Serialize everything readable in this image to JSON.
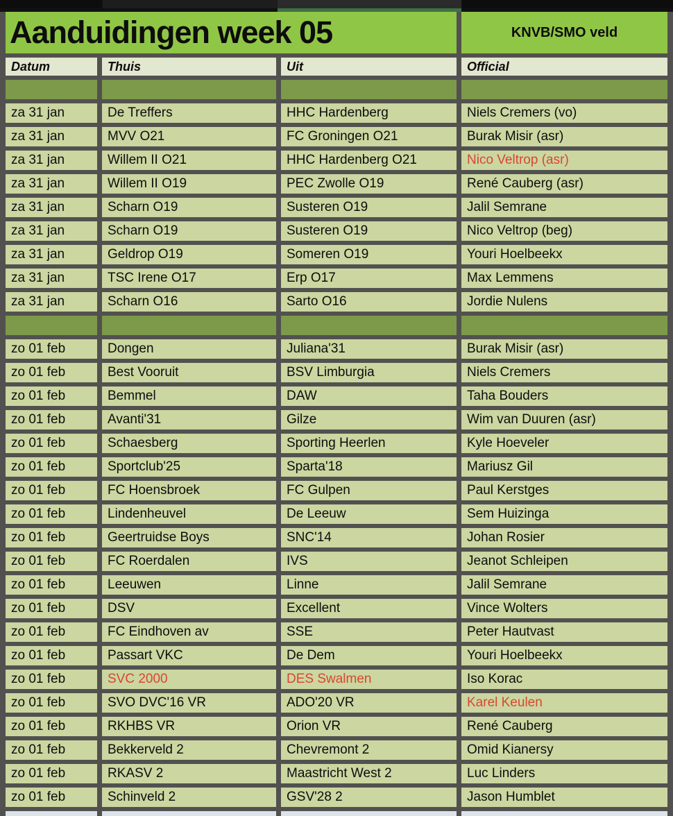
{
  "title": {
    "text": "Aanduidingen week 05",
    "subtitle": "KNVB/SMO veld"
  },
  "table": {
    "columns": [
      "Datum",
      "Thuis",
      "Uit",
      "Official"
    ],
    "sections": [
      {
        "rows": [
          {
            "datum": "za 31 jan",
            "thuis": "De Treffers",
            "uit": "HHC Hardenberg",
            "official": "Niels Cremers (vo)",
            "red": []
          },
          {
            "datum": "za 31 jan",
            "thuis": "MVV O21",
            "uit": "FC Groningen O21",
            "official": "Burak Misir (asr)",
            "red": []
          },
          {
            "datum": "za 31 jan",
            "thuis": "Willem II O21",
            "uit": "HHC Hardenberg O21",
            "official": "Nico Veltrop (asr)",
            "red": [
              "official"
            ]
          },
          {
            "datum": "za 31 jan",
            "thuis": "Willem II O19",
            "uit": "PEC Zwolle O19",
            "official": "René Cauberg (asr)",
            "red": []
          },
          {
            "datum": "za 31 jan",
            "thuis": "Scharn O19",
            "uit": "Susteren O19",
            "official": "Jalil Semrane",
            "red": []
          },
          {
            "datum": "za 31 jan",
            "thuis": "Scharn O19",
            "uit": "Susteren O19",
            "official": "Nico Veltrop (beg)",
            "red": []
          },
          {
            "datum": "za 31 jan",
            "thuis": "Geldrop O19",
            "uit": "Someren O19",
            "official": "Youri Hoelbeekx",
            "red": []
          },
          {
            "datum": "za 31 jan",
            "thuis": "TSC Irene O17",
            "uit": "Erp O17",
            "official": "Max Lemmens",
            "red": []
          },
          {
            "datum": "za 31 jan",
            "thuis": "Scharn O16",
            "uit": "Sarto O16",
            "official": "Jordie Nulens",
            "red": []
          }
        ]
      },
      {
        "rows": [
          {
            "datum": "zo 01 feb",
            "thuis": "Dongen",
            "uit": "Juliana'31",
            "official": "Burak Misir (asr)",
            "red": []
          },
          {
            "datum": "zo 01 feb",
            "thuis": "Best Vooruit",
            "uit": "BSV Limburgia",
            "official": "Niels Cremers",
            "red": []
          },
          {
            "datum": "zo 01 feb",
            "thuis": "Bemmel",
            "uit": "DAW",
            "official": "Taha Bouders",
            "red": []
          },
          {
            "datum": "zo 01 feb",
            "thuis": "Avanti'31",
            "uit": "Gilze",
            "official": "Wim van Duuren (asr)",
            "red": []
          },
          {
            "datum": "zo 01 feb",
            "thuis": "Schaesberg",
            "uit": "Sporting Heerlen",
            "official": "Kyle Hoeveler",
            "red": []
          },
          {
            "datum": "zo 01 feb",
            "thuis": "Sportclub'25",
            "uit": "Sparta'18",
            "official": "Mariusz Gil",
            "red": []
          },
          {
            "datum": "zo 01 feb",
            "thuis": "FC Hoensbroek",
            "uit": "FC Gulpen",
            "official": "Paul Kerstges",
            "red": []
          },
          {
            "datum": "zo 01 feb",
            "thuis": "Lindenheuvel",
            "uit": "De Leeuw",
            "official": "Sem Huizinga",
            "red": []
          },
          {
            "datum": "zo 01 feb",
            "thuis": "Geertruidse Boys",
            "uit": "SNC'14",
            "official": "Johan Rosier",
            "red": []
          },
          {
            "datum": "zo 01 feb",
            "thuis": "FC Roerdalen",
            "uit": "IVS",
            "official": "Jeanot Schleipen",
            "red": []
          },
          {
            "datum": "zo 01 feb",
            "thuis": "Leeuwen",
            "uit": "Linne",
            "official": "Jalil Semrane",
            "red": []
          },
          {
            "datum": "zo 01 feb",
            "thuis": "DSV",
            "uit": "Excellent",
            "official": "Vince Wolters",
            "red": []
          },
          {
            "datum": "zo 01 feb",
            "thuis": "FC Eindhoven av",
            "uit": "SSE",
            "official": "Peter Hautvast",
            "red": []
          },
          {
            "datum": "zo 01 feb",
            "thuis": "Passart VKC",
            "uit": "De Dem",
            "official": "Youri Hoelbeekx",
            "red": []
          },
          {
            "datum": "zo 01 feb",
            "thuis": "SVC 2000",
            "uit": "DES Swalmen",
            "official": "Iso Korac",
            "red": [
              "thuis",
              "uit"
            ]
          },
          {
            "datum": "zo 01 feb",
            "thuis": "SVO DVC'16 VR",
            "uit": "ADO'20 VR",
            "official": "Karel Keulen",
            "red": [
              "official"
            ]
          },
          {
            "datum": "zo 01 feb",
            "thuis": "RKHBS VR",
            "uit": "Orion VR",
            "official": "René Cauberg",
            "red": []
          },
          {
            "datum": "zo 01 feb",
            "thuis": "Bekkerveld 2",
            "uit": "Chevremont 2",
            "official": "Omid Kianersy",
            "red": []
          },
          {
            "datum": "zo 01 feb",
            "thuis": "RKASV 2",
            "uit": "Maastricht West 2",
            "official": "Luc Linders",
            "red": []
          },
          {
            "datum": "zo 01 feb",
            "thuis": "Schinveld 2",
            "uit": "GSV'28 2",
            "official": "Jason Humblet",
            "red": []
          }
        ]
      }
    ]
  },
  "colors": {
    "background": "#52514f",
    "title_green": "#90c645",
    "header_bg": "#e2e7cf",
    "divider_row_bg": "#7c9a49",
    "cell_bg": "#cbd6a1",
    "alert_red": "#d9472e",
    "active_tab_accent": "#3e7144",
    "next_row_bg": "#dde3ea"
  }
}
